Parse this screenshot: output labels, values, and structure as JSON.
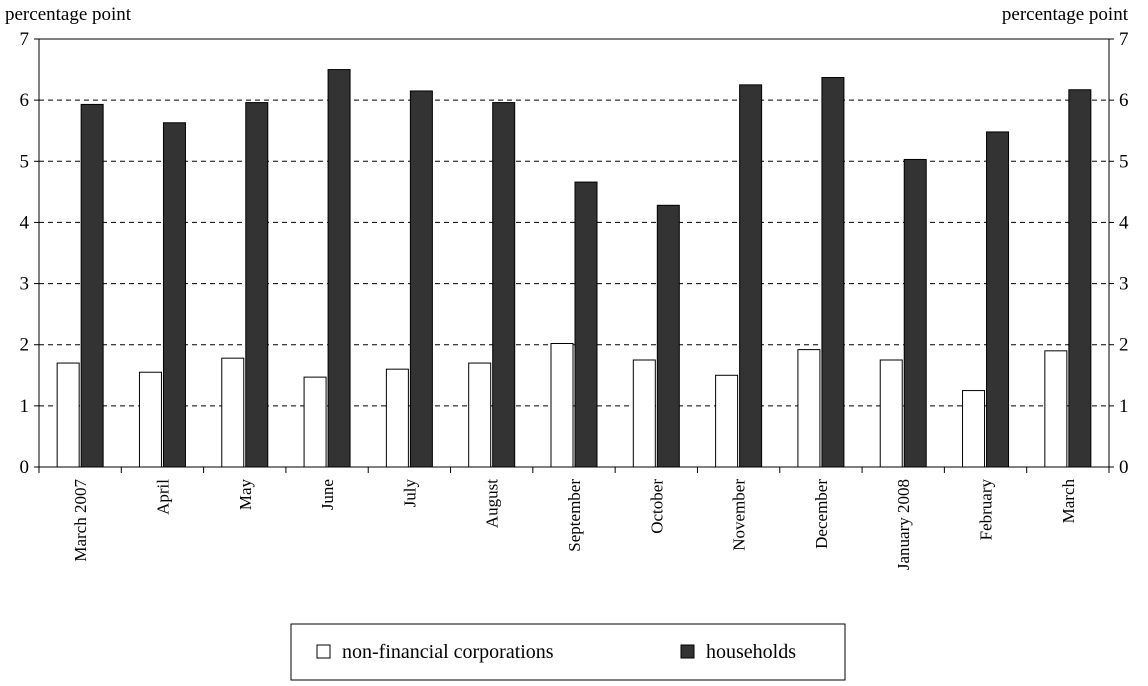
{
  "chart_data": {
    "type": "bar",
    "left_unit_label": "percentage point",
    "right_unit_label": "percentage point",
    "categories": [
      "March 2007",
      "April",
      "May",
      "June",
      "July",
      "August",
      "September",
      "October",
      "November",
      "December",
      "January 2008",
      "February",
      "March"
    ],
    "series": [
      {
        "name": "non-financial corporations",
        "color": "#ffffff",
        "values": [
          1.7,
          1.55,
          1.78,
          1.47,
          1.6,
          1.7,
          2.02,
          1.75,
          1.5,
          1.92,
          1.75,
          1.25,
          1.9
        ]
      },
      {
        "name": "households",
        "color": "#333333",
        "values": [
          5.93,
          5.63,
          5.96,
          6.5,
          6.15,
          5.96,
          4.66,
          4.28,
          6.25,
          6.37,
          5.03,
          5.48,
          6.17
        ]
      }
    ],
    "ylim": [
      0,
      7
    ],
    "yticks": [
      "0",
      "1",
      "2",
      "3",
      "4",
      "5",
      "6",
      "7"
    ],
    "grid": "dashed horizontal",
    "legend_position": "bottom-center"
  }
}
